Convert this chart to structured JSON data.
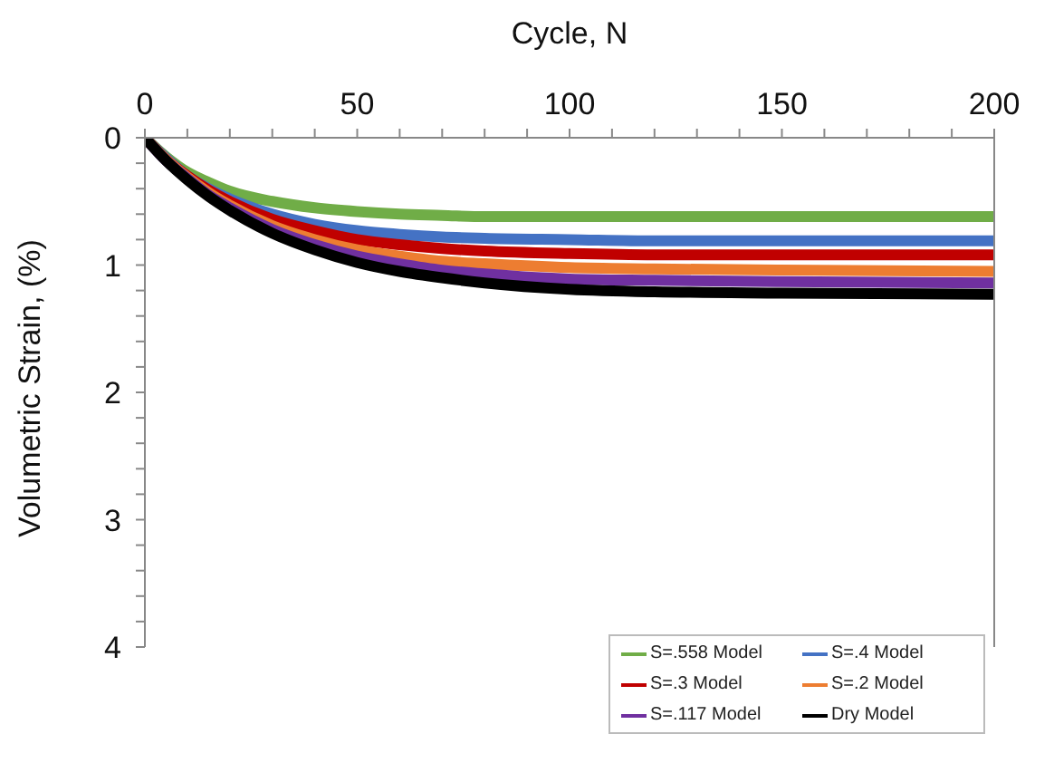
{
  "chart_data": {
    "type": "line",
    "xlabel": "Cycle, N",
    "ylabel": "Volumetric Strain, (%)",
    "x": [
      0,
      5,
      10,
      15,
      20,
      30,
      40,
      50,
      60,
      70,
      80,
      100,
      120,
      150,
      200
    ],
    "series": [
      {
        "name": "S=.558 Model",
        "color": "#70ad47",
        "values": [
          0,
          0.15,
          0.27,
          0.35,
          0.42,
          0.5,
          0.55,
          0.58,
          0.6,
          0.61,
          0.62,
          0.62,
          0.62,
          0.62,
          0.62
        ]
      },
      {
        "name": "S=.4 Model",
        "color": "#4472c4",
        "values": [
          0,
          0.16,
          0.3,
          0.4,
          0.48,
          0.6,
          0.68,
          0.73,
          0.76,
          0.78,
          0.79,
          0.8,
          0.81,
          0.81,
          0.81
        ]
      },
      {
        "name": "S=.3 Model",
        "color": "#c00000",
        "values": [
          0,
          0.17,
          0.3,
          0.41,
          0.5,
          0.64,
          0.73,
          0.8,
          0.84,
          0.87,
          0.89,
          0.91,
          0.92,
          0.92,
          0.92
        ]
      },
      {
        "name": "S=.2 Model",
        "color": "#ed7d31",
        "values": [
          0,
          0.17,
          0.31,
          0.43,
          0.53,
          0.69,
          0.8,
          0.88,
          0.93,
          0.97,
          0.99,
          1.02,
          1.03,
          1.04,
          1.05
        ]
      },
      {
        "name": "S=.117 Model",
        "color": "#7030a0",
        "values": [
          0,
          0.18,
          0.32,
          0.45,
          0.55,
          0.72,
          0.84,
          0.93,
          0.99,
          1.04,
          1.07,
          1.11,
          1.12,
          1.13,
          1.14
        ]
      },
      {
        "name": "Dry Model",
        "color": "#000000",
        "values": [
          0,
          0.18,
          0.33,
          0.46,
          0.57,
          0.75,
          0.88,
          0.98,
          1.05,
          1.1,
          1.14,
          1.19,
          1.21,
          1.22,
          1.23
        ]
      }
    ],
    "xlim": [
      0,
      200
    ],
    "xticks": [
      0,
      {
        "value": 10,
        "label": null
      },
      {
        "value": 20,
        "label": null
      },
      {
        "value": 30,
        "label": null
      },
      {
        "value": 40,
        "label": null
      },
      50,
      {
        "value": 60,
        "label": null
      },
      {
        "value": 70,
        "label": null
      },
      {
        "value": 80,
        "label": null
      },
      {
        "value": 90,
        "label": null
      },
      100,
      {
        "value": 110,
        "label": null
      },
      {
        "value": 120,
        "label": null
      },
      {
        "value": 130,
        "label": null
      },
      {
        "value": 140,
        "label": null
      },
      150,
      {
        "value": 160,
        "label": null
      },
      {
        "value": 170,
        "label": null
      },
      {
        "value": 180,
        "label": null
      },
      {
        "value": 190,
        "label": null
      },
      200
    ],
    "ylim": [
      4,
      0
    ],
    "yticks": [
      0,
      {
        "value": 0.2,
        "label": null
      },
      {
        "value": 0.4,
        "label": null
      },
      {
        "value": 0.6,
        "label": null
      },
      {
        "value": 0.8,
        "label": null
      },
      1,
      {
        "value": 1.2,
        "label": null
      },
      {
        "value": 1.4,
        "label": null
      },
      {
        "value": 1.6,
        "label": null
      },
      {
        "value": 1.8,
        "label": null
      },
      2,
      {
        "value": 2.2,
        "label": null
      },
      {
        "value": 2.4,
        "label": null
      },
      {
        "value": 2.6,
        "label": null
      },
      {
        "value": 2.8,
        "label": null
      },
      3,
      {
        "value": 3.2,
        "label": null
      },
      {
        "value": 3.4,
        "label": null
      },
      {
        "value": 3.6,
        "label": null
      },
      {
        "value": 3.8,
        "label": null
      },
      4
    ],
    "grid": false,
    "legend": "bottom right",
    "marker": "none",
    "line_style": "solid"
  }
}
